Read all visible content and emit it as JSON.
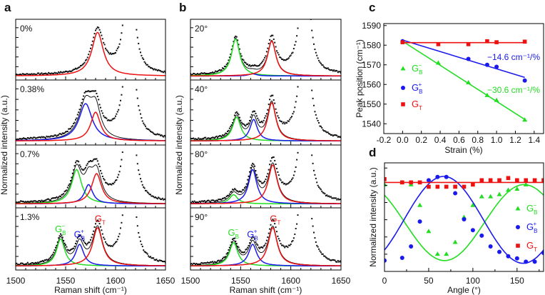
{
  "colors": {
    "green": "#22dd22",
    "blue": "#1a1aee",
    "red": "#ee1111",
    "data": "#111111"
  },
  "chart_data": [
    {
      "type": "line",
      "panel_label": "a",
      "xlabel": "Raman shift (cm⁻¹)",
      "ylabel": "Normalized intensity (a.u.)",
      "xlim": [
        1500,
        1650
      ],
      "xticks": [
        "1500",
        "1550",
        "1600",
        "1650"
      ],
      "xtick_values": [
        1500,
        1550,
        1600,
        1650
      ],
      "extra_peak": {
        "center": 1614,
        "amp": 4,
        "hwhm": 4
      },
      "subplots": [
        {
          "label": "0%",
          "peaks": [
            {
              "name": "G_T",
              "color": "red",
              "center": 1582,
              "amp": 1.0,
              "hwhm": 7
            }
          ]
        },
        {
          "label": "0.38%",
          "peaks": [
            {
              "name": "G_B+",
              "color": "blue",
              "center": 1570,
              "amp": 0.78,
              "hwhm": 8
            },
            {
              "name": "G_T",
              "color": "red",
              "center": 1580,
              "amp": 0.6,
              "hwhm": 6
            }
          ]
        },
        {
          "label": "0.7%",
          "peaks": [
            {
              "name": "G_B-",
              "color": "green",
              "center": 1561,
              "amp": 0.75,
              "hwhm": 6
            },
            {
              "name": "G_B+",
              "color": "blue",
              "center": 1573,
              "amp": 0.42,
              "hwhm": 5
            },
            {
              "name": "G_T",
              "color": "red",
              "center": 1581,
              "amp": 0.66,
              "hwhm": 6
            }
          ]
        },
        {
          "label": "1.3%",
          "peaks": [
            {
              "name": "G_B-",
              "color": "green",
              "center": 1545,
              "amp": 0.6,
              "hwhm": 5
            },
            {
              "name": "G_B+",
              "color": "blue",
              "center": 1564,
              "amp": 0.48,
              "hwhm": 5
            },
            {
              "name": "G_T",
              "color": "red",
              "center": 1582,
              "amp": 0.85,
              "hwhm": 6
            }
          ],
          "peak_labels": [
            {
              "base": "G",
              "sub": "B",
              "sup": "−",
              "color": "green",
              "peak": 0
            },
            {
              "base": "G",
              "sub": "B",
              "sup": "+",
              "color": "blue",
              "peak": 1
            },
            {
              "base": "G",
              "sub": "T",
              "sup": "",
              "color": "red",
              "peak": 2
            }
          ]
        }
      ]
    },
    {
      "type": "line",
      "panel_label": "b",
      "xlabel": "Raman shift (cm⁻¹)",
      "ylabel": "Normalized intensity (a.u.)",
      "xlim": [
        1500,
        1650
      ],
      "xticks": [
        "1500",
        "1550",
        "1600",
        "1650"
      ],
      "xtick_values": [
        1500,
        1550,
        1600,
        1650
      ],
      "extra_peak": {
        "center": 1614,
        "amp": 4,
        "hwhm": 4
      },
      "subplots": [
        {
          "label": "20°",
          "peaks": [
            {
              "name": "G_B-",
              "color": "green",
              "center": 1545,
              "amp": 0.85,
              "hwhm": 5
            },
            {
              "name": "G_B+",
              "color": "blue",
              "center": 1562,
              "amp": 0.05,
              "hwhm": 5
            },
            {
              "name": "G_T",
              "color": "red",
              "center": 1581,
              "amp": 0.8,
              "hwhm": 5
            }
          ]
        },
        {
          "label": "40°",
          "peaks": [
            {
              "name": "G_B-",
              "color": "green",
              "center": 1546,
              "amp": 0.5,
              "hwhm": 5
            },
            {
              "name": "G_B+",
              "color": "blue",
              "center": 1563,
              "amp": 0.45,
              "hwhm": 4.5
            },
            {
              "name": "G_T",
              "color": "red",
              "center": 1581,
              "amp": 0.8,
              "hwhm": 5
            }
          ]
        },
        {
          "label": "80°",
          "peaks": [
            {
              "name": "G_B-",
              "color": "green",
              "center": 1543,
              "amp": 0.2,
              "hwhm": 5
            },
            {
              "name": "G_B+",
              "color": "blue",
              "center": 1562,
              "amp": 0.75,
              "hwhm": 5
            },
            {
              "name": "G_T",
              "color": "red",
              "center": 1582,
              "amp": 0.85,
              "hwhm": 5.5
            }
          ]
        },
        {
          "label": "90°",
          "peaks": [
            {
              "name": "G_B-",
              "color": "green",
              "center": 1543,
              "amp": 0.52,
              "hwhm": 5
            },
            {
              "name": "G_B+",
              "color": "blue",
              "center": 1562,
              "amp": 0.48,
              "hwhm": 5
            },
            {
              "name": "G_T",
              "color": "red",
              "center": 1582,
              "amp": 0.85,
              "hwhm": 5.5
            }
          ],
          "peak_labels": [
            {
              "base": "G",
              "sub": "B",
              "sup": "−",
              "color": "green",
              "peak": 0
            },
            {
              "base": "G",
              "sub": "B",
              "sup": "+",
              "color": "blue",
              "peak": 1
            },
            {
              "base": "G",
              "sub": "T",
              "sup": "",
              "color": "red",
              "peak": 2
            }
          ]
        }
      ]
    },
    {
      "type": "scatter",
      "panel_label": "c",
      "xlabel": "Strain (%)",
      "ylabel": "Peak position (cm⁻¹)",
      "xlim": [
        -0.2,
        1.5
      ],
      "ylim": [
        1535,
        1591
      ],
      "xticks": [
        "-0.2",
        "0.0",
        "0.2",
        "0.4",
        "0.6",
        "0.8",
        "1.0",
        "1.2",
        "1.4"
      ],
      "xtick_values": [
        -0.2,
        0,
        0.2,
        0.4,
        0.6,
        0.8,
        1.0,
        1.2,
        1.4
      ],
      "yticks": [
        "1540",
        "1550",
        "1560",
        "1570",
        "1580",
        "1590"
      ],
      "ytick_values": [
        1540,
        1550,
        1560,
        1570,
        1580,
        1590
      ],
      "legend_position": "left",
      "series": [
        {
          "legend": {
            "base": "G",
            "sub": "B",
            "sup": "−"
          },
          "color": "green",
          "marker": "triangle",
          "x": [
            0,
            0.38,
            0.7,
            0.9,
            1.0,
            1.3
          ],
          "y": [
            1582,
            1571,
            1561,
            1554.5,
            1552,
            1542
          ],
          "fit": {
            "x": [
              0,
              1.3
            ],
            "y": [
              1582,
              1542.2
            ]
          },
          "annotation": "−30.6 cm⁻¹/%"
        },
        {
          "legend": {
            "base": "G",
            "sub": "B",
            "sup": "+"
          },
          "color": "blue",
          "marker": "circle",
          "x": [
            0,
            0.7,
            0.9,
            1.0,
            1.3
          ],
          "y": [
            1582,
            1573,
            1570,
            1569,
            1562
          ],
          "fit": {
            "x": [
              0,
              1.3
            ],
            "y": [
              1582.6,
              1563.6
            ]
          },
          "annotation": "−14.6 cm⁻¹/%"
        },
        {
          "legend": {
            "base": "G",
            "sub": "T",
            "sup": ""
          },
          "color": "red",
          "marker": "square",
          "x": [
            0,
            0.38,
            0.7,
            0.9,
            1.0,
            1.3
          ],
          "y": [
            1581.5,
            1580.5,
            1580.5,
            1582,
            1581.5,
            1581.8
          ],
          "fit": {
            "x": [
              0,
              1.3
            ],
            "y": [
              1581.3,
              1581.3
            ]
          }
        }
      ]
    },
    {
      "type": "scatter",
      "panel_label": "d",
      "xlabel": "Angle (°)",
      "ylabel": "Normalized intensity (a.u.)",
      "xlim": [
        0,
        180
      ],
      "ylim": [
        0,
        1
      ],
      "xticks": [
        "0",
        "50",
        "100",
        "150"
      ],
      "xtick_values": [
        0,
        50,
        100,
        150
      ],
      "legend_position": "right",
      "series": [
        {
          "legend": {
            "base": "G",
            "sub": "B",
            "sup": "−"
          },
          "color": "green",
          "marker": "triangle",
          "x": [
            0,
            20,
            30,
            40,
            50,
            60,
            70,
            80,
            90,
            100,
            110,
            120,
            130,
            140,
            150,
            160
          ],
          "y": [
            0.8,
            0.82,
            0.8,
            0.61,
            0.37,
            0.16,
            0.16,
            0.27,
            0.5,
            0.61,
            0.69,
            0.69,
            0.71,
            0.75,
            0.76,
            0.8
          ],
          "fit": {
            "model": "cos2",
            "offset": 0.45,
            "amplitude": 0.35,
            "phase_deg": 158
          }
        },
        {
          "legend": {
            "base": "G",
            "sub": "B",
            "sup": "+"
          },
          "color": "blue",
          "marker": "circle",
          "x": [
            0,
            20,
            30,
            40,
            50,
            60,
            70,
            80,
            90,
            100,
            110,
            120,
            130,
            140,
            150,
            160,
            170,
            180
          ],
          "y": [
            0.1,
            0.125,
            0.23,
            0.46,
            0.84,
            0.87,
            0.87,
            0.72,
            0.48,
            0.38,
            0.33,
            0.23,
            0.18,
            0.14,
            0.12,
            0.09,
            0.09,
            0.17
          ],
          "fit": {
            "model": "cos2",
            "offset": 0.475,
            "amplitude": 0.4,
            "phase_deg": 67
          }
        },
        {
          "legend": {
            "base": "G",
            "sub": "T",
            "sup": ""
          },
          "color": "red",
          "marker": "square",
          "x": [
            0,
            20,
            30,
            40,
            50,
            60,
            70,
            80,
            90,
            100,
            110,
            120,
            130,
            140,
            150,
            160,
            170,
            180
          ],
          "y": [
            0.85,
            0.82,
            0.82,
            0.82,
            0.78,
            0.78,
            0.78,
            0.78,
            0.78,
            0.8,
            0.84,
            0.84,
            0.84,
            0.86,
            0.84,
            0.84,
            0.84,
            0.84
          ],
          "fit": {
            "model": "const",
            "offset": 0.82
          }
        }
      ]
    }
  ]
}
